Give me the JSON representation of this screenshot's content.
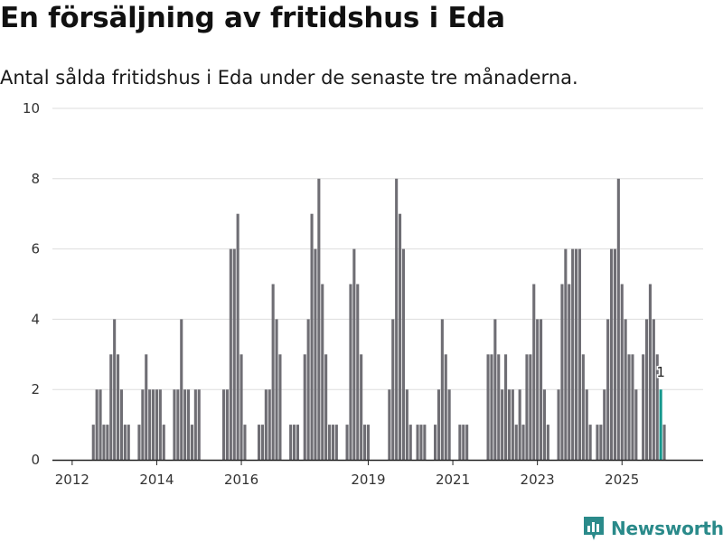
{
  "title": "En försäljning av fritidshus i Eda",
  "subtitle": "Antal sålda fritidshus i Eda under de senaste tre månaderna.",
  "brand": "Newsworthy",
  "colors": {
    "bar": "#6f6e74",
    "highlight": "#16988d",
    "grid": "#dddddd",
    "brand": "#2a8a8a"
  },
  "chart_data": {
    "type": "bar",
    "title": "En försäljning av fritidshus i Eda",
    "xlabel": "",
    "ylabel": "",
    "ylim": [
      0,
      10
    ],
    "yticks": [
      0,
      2,
      4,
      6,
      8,
      10
    ],
    "x_start": "2011-01",
    "x_ticks": [
      {
        "label": "2012",
        "index": 12
      },
      {
        "label": "2014",
        "index": 36
      },
      {
        "label": "2016",
        "index": 60
      },
      {
        "label": "2019",
        "index": 96
      },
      {
        "label": "2021",
        "index": 120
      },
      {
        "label": "2023",
        "index": 144
      },
      {
        "label": "2025",
        "index": 168
      }
    ],
    "values": [
      0,
      0,
      0,
      0,
      0,
      0,
      0,
      0,
      0,
      0,
      0,
      0,
      0,
      0,
      0,
      0,
      0,
      0,
      1,
      2,
      2,
      1,
      1,
      3,
      4,
      3,
      2,
      1,
      1,
      0,
      0,
      1,
      2,
      3,
      2,
      2,
      2,
      2,
      1,
      0,
      0,
      2,
      2,
      4,
      2,
      2,
      1,
      2,
      2,
      0,
      0,
      0,
      0,
      0,
      0,
      2,
      2,
      6,
      6,
      7,
      3,
      1,
      0,
      0,
      0,
      1,
      1,
      2,
      2,
      5,
      4,
      3,
      0,
      0,
      1,
      1,
      1,
      0,
      3,
      4,
      7,
      6,
      8,
      5,
      3,
      1,
      1,
      1,
      0,
      0,
      1,
      5,
      6,
      5,
      3,
      1,
      1,
      0,
      0,
      0,
      0,
      0,
      2,
      4,
      8,
      7,
      6,
      2,
      1,
      0,
      1,
      1,
      1,
      0,
      0,
      1,
      2,
      4,
      3,
      2,
      0,
      0,
      1,
      1,
      1,
      0,
      0,
      0,
      0,
      0,
      3,
      3,
      4,
      3,
      2,
      3,
      2,
      2,
      1,
      2,
      1,
      3,
      3,
      5,
      4,
      4,
      2,
      1,
      0,
      0,
      2,
      5,
      6,
      5,
      6,
      6,
      6,
      3,
      2,
      1,
      0,
      1,
      1,
      2,
      4,
      6,
      6,
      8,
      5,
      4,
      3,
      3,
      2,
      0,
      3,
      4,
      5,
      4,
      3,
      2,
      1
    ],
    "highlight_index": 179,
    "highlight_label": "1"
  }
}
